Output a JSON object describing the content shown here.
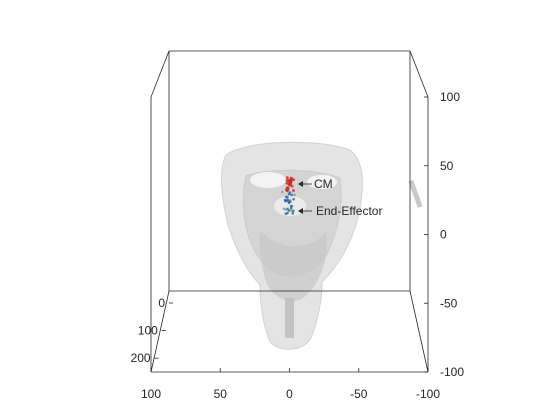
{
  "chart_data": {
    "type": "scatter",
    "projection": "3d",
    "view": "front, slightly elevated",
    "grid": false,
    "box": true,
    "axes": {
      "x": {
        "ticks": [
          100,
          50,
          0,
          -50,
          -100
        ],
        "range": [
          100,
          -100
        ]
      },
      "y": {
        "ticks": [
          0,
          100,
          200
        ],
        "range": [
          0,
          250
        ]
      },
      "z": {
        "ticks": [
          100,
          50,
          0,
          -50,
          -100
        ],
        "range": [
          -100,
          100
        ]
      }
    },
    "annotations": [
      {
        "text": "CM",
        "marker_color": "#cc2a1e"
      },
      {
        "text": "End-Effector",
        "marker_color": "#2a5db0"
      }
    ],
    "background_object": {
      "kind": "translucent head mesh",
      "color": "#d9d9d9"
    }
  }
}
